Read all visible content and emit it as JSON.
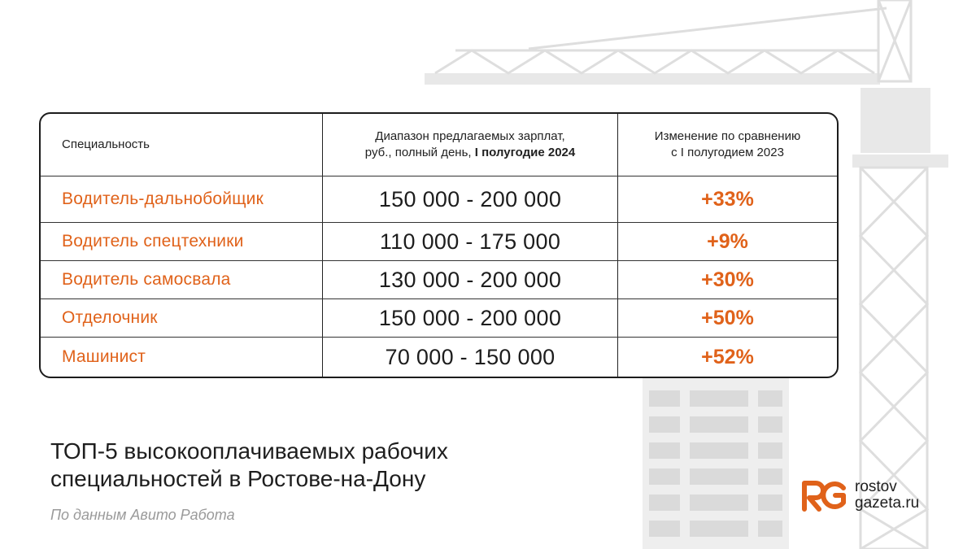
{
  "table": {
    "header": {
      "col1": "Специальность",
      "col2_line1": "Диапазон предлагаемых зарплат,",
      "col2_line2_prefix": "руб., полный день, ",
      "col2_line2_bold": "I полугодие 2024",
      "col3_line1": "Изменение по сравнению",
      "col3_line2": "с I полугодием 2023"
    },
    "rows": [
      {
        "specialty": "Водитель-дальнобойщик",
        "range": "150 000 - 200 000",
        "change": "+33%"
      },
      {
        "specialty": "Водитель спецтехники",
        "range": "110 000 - 175 000",
        "change": "+9%"
      },
      {
        "specialty": "Водитель самосвала",
        "range": "130 000 - 200 000",
        "change": "+30%"
      },
      {
        "specialty": "Отделочник",
        "range": "150 000 - 200 000",
        "change": "+50%"
      },
      {
        "specialty": "Машинист",
        "range": "70 000 - 150 000",
        "change": "+52%"
      }
    ]
  },
  "title_line1": "ТОП-5 высокооплачиваемых рабочих",
  "title_line2": "специальностей в Ростове-на-Дону",
  "source": "По данным Авито Работа",
  "logo": {
    "line1": "rostov",
    "line2": "gazeta.ru",
    "mark": "RG"
  },
  "colors": {
    "accent": "#e0621a",
    "text": "#1e1e1e",
    "muted": "#9a9a9a",
    "background_shapes": "#e9e9e9"
  }
}
